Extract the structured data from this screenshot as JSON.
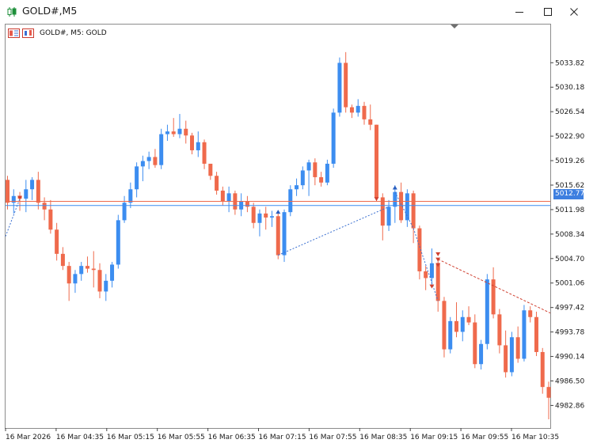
{
  "window": {
    "title": "GOLD#,M5",
    "minimize_icon": "minimize-icon",
    "maximize_icon": "maximize-icon",
    "close_icon": "close-icon"
  },
  "chart_header": {
    "label": "GOLD#, M5:  GOLD",
    "icons": [
      "trade-panel-icon",
      "chart-icon"
    ]
  },
  "colors": {
    "bull": "#3c8df0",
    "bear": "#ef6a4c",
    "bid_line": "#ef6a4c",
    "ask_line": "#3c8df0",
    "price_tag": "#3e7fe0"
  },
  "current_price_label": "5012.77",
  "chart_data": {
    "type": "candlestick",
    "title": "GOLD#, M5:  GOLD",
    "symbol": "GOLD#",
    "timeframe": "M5",
    "ylim": [
      4979.5,
      5039.5
    ],
    "y_ticks": [
      "5033.82",
      "5030.18",
      "5026.54",
      "5022.90",
      "5019.26",
      "5015.62",
      "5011.98",
      "5008.34",
      "5004.70",
      "5001.06",
      "4997.42",
      "4993.78",
      "4990.14",
      "4986.50",
      "4982.86"
    ],
    "x_ticks": [
      "16 Mar 2026",
      "16 Mar 04:35",
      "16 Mar 05:15",
      "16 Mar 05:55",
      "16 Mar 06:35",
      "16 Mar 07:15",
      "16 Mar 07:55",
      "16 Mar 08:35",
      "16 Mar 09:15",
      "16 Mar 09:55",
      "16 Mar 10:35"
    ],
    "bid": 5012.77,
    "ask": 5013.2,
    "candles": [
      [
        5016.4,
        5017.0,
        5012.0,
        5013.0
      ],
      [
        5013.0,
        5015.0,
        5011.4,
        5014.0
      ],
      [
        5014.0,
        5014.6,
        5011.8,
        5013.6
      ],
      [
        5013.6,
        5016.4,
        5011.6,
        5015.0
      ],
      [
        5015.0,
        5016.8,
        5013.4,
        5016.4
      ],
      [
        5016.4,
        5017.6,
        5012.0,
        5013.0
      ],
      [
        5013.0,
        5013.8,
        5010.4,
        5012.0
      ],
      [
        5012.0,
        5013.4,
        5008.4,
        5009.0
      ],
      [
        5009.0,
        5010.0,
        5004.4,
        5005.4
      ],
      [
        5005.4,
        5006.4,
        5003.0,
        5003.6
      ],
      [
        5003.6,
        5004.2,
        4998.4,
        5001.0
      ],
      [
        5001.0,
        5003.0,
        4999.6,
        5002.4
      ],
      [
        5002.4,
        5004.2,
        5001.4,
        5003.6
      ],
      [
        5003.6,
        5005.0,
        5002.6,
        5003.2
      ],
      [
        5003.2,
        5005.8,
        5000.4,
        5003.0
      ],
      [
        5003.0,
        5004.0,
        4998.8,
        4999.8
      ],
      [
        4999.8,
        5002.4,
        4998.4,
        5001.4
      ],
      [
        5001.4,
        5004.2,
        5000.4,
        5003.8
      ],
      [
        5003.8,
        5011.2,
        5003.2,
        5010.4
      ],
      [
        5010.4,
        5014.0,
        5010.0,
        5013.0
      ],
      [
        5013.0,
        5016.0,
        5012.2,
        5015.0
      ],
      [
        5015.0,
        5019.0,
        5013.8,
        5018.4
      ],
      [
        5018.4,
        5020.0,
        5016.2,
        5019.2
      ],
      [
        5019.2,
        5020.6,
        5018.0,
        5019.8
      ],
      [
        5019.8,
        5021.0,
        5018.2,
        5018.6
      ],
      [
        5018.6,
        5024.0,
        5018.0,
        5023.2
      ],
      [
        5023.2,
        5024.6,
        5022.2,
        5023.6
      ],
      [
        5023.6,
        5025.6,
        5022.8,
        5023.2
      ],
      [
        5023.2,
        5026.2,
        5022.6,
        5024.0
      ],
      [
        5024.0,
        5025.2,
        5021.8,
        5023.0
      ],
      [
        5023.0,
        5023.4,
        5020.2,
        5020.8
      ],
      [
        5020.8,
        5023.6,
        5019.8,
        5022.0
      ],
      [
        5022.0,
        5022.4,
        5018.0,
        5018.8
      ],
      [
        5018.8,
        5018.6,
        5016.4,
        5017.0
      ],
      [
        5017.0,
        5017.6,
        5014.2,
        5014.8
      ],
      [
        5014.8,
        5015.4,
        5012.6,
        5013.2
      ],
      [
        5013.2,
        5015.4,
        5011.6,
        5014.4
      ],
      [
        5014.4,
        5014.8,
        5011.2,
        5012.0
      ],
      [
        5012.0,
        5014.4,
        5011.0,
        5013.2
      ],
      [
        5013.2,
        5014.0,
        5011.6,
        5012.4
      ],
      [
        5012.4,
        5013.0,
        5009.2,
        5010.0
      ],
      [
        5010.0,
        5012.0,
        5008.0,
        5011.4
      ],
      [
        5011.4,
        5012.4,
        5009.0,
        5010.8
      ],
      [
        5010.8,
        5011.8,
        5009.4,
        5011.0
      ],
      [
        5011.0,
        5011.6,
        5004.6,
        5005.2
      ],
      [
        5005.2,
        5012.0,
        5004.2,
        5011.6
      ],
      [
        5011.6,
        5015.6,
        5011.0,
        5015.0
      ],
      [
        5015.0,
        5016.6,
        5014.0,
        5015.6
      ],
      [
        5015.6,
        5018.4,
        5015.0,
        5017.8
      ],
      [
        5017.8,
        5019.4,
        5014.0,
        5019.0
      ],
      [
        5019.0,
        5019.6,
        5015.6,
        5016.8
      ],
      [
        5016.8,
        5017.6,
        5015.4,
        5016.0
      ],
      [
        5016.0,
        5019.4,
        5015.6,
        5018.8
      ],
      [
        5018.8,
        5027.0,
        5018.2,
        5026.4
      ],
      [
        5026.4,
        5034.6,
        5025.8,
        5033.8
      ],
      [
        5033.8,
        5035.4,
        5026.4,
        5027.2
      ],
      [
        5027.2,
        5027.6,
        5025.6,
        5026.4
      ],
      [
        5026.4,
        5028.4,
        5025.8,
        5027.4
      ],
      [
        5027.4,
        5028.0,
        5024.6,
        5025.4
      ],
      [
        5025.4,
        5027.6,
        5023.8,
        5024.6
      ],
      [
        5024.6,
        5024.6,
        5013.2,
        5013.8
      ],
      [
        5013.8,
        5014.4,
        5007.4,
        5009.6
      ],
      [
        5009.6,
        5013.4,
        5008.8,
        5012.4
      ],
      [
        5012.4,
        5015.6,
        5010.0,
        5014.6
      ],
      [
        5014.6,
        5016.0,
        5010.0,
        5010.4
      ],
      [
        5010.4,
        5015.0,
        5009.4,
        5014.4
      ],
      [
        5014.4,
        5014.8,
        5007.0,
        5009.2
      ],
      [
        5009.2,
        5009.6,
        5001.6,
        5002.8
      ],
      [
        5002.8,
        5003.6,
        5000.0,
        5001.8
      ],
      [
        5001.8,
        5006.2,
        5000.8,
        5004.0
      ],
      [
        5004.0,
        5004.6,
        4996.8,
        4998.4
      ],
      [
        4998.4,
        4999.0,
        4990.0,
        4991.2
      ],
      [
        4991.2,
        4996.0,
        4990.6,
        4995.4
      ],
      [
        4995.4,
        4998.2,
        4993.0,
        4993.8
      ],
      [
        4993.8,
        4997.0,
        4992.4,
        4996.0
      ],
      [
        4996.0,
        4997.6,
        4994.8,
        4995.2
      ],
      [
        4995.2,
        4996.4,
        4988.4,
        4989.0
      ],
      [
        4989.0,
        4992.6,
        4988.2,
        4992.0
      ],
      [
        4992.0,
        5002.4,
        4991.2,
        5001.6
      ],
      [
        5001.6,
        5003.4,
        4995.8,
        4996.4
      ],
      [
        4996.4,
        4997.2,
        4990.6,
        4991.8
      ],
      [
        4991.8,
        4994.0,
        4987.0,
        4987.8
      ],
      [
        4987.8,
        4993.8,
        4987.2,
        4993.0
      ],
      [
        4993.0,
        4994.6,
        4989.2,
        4989.8
      ],
      [
        4989.8,
        4997.8,
        4989.4,
        4997.0
      ],
      [
        4997.0,
        4997.6,
        4995.2,
        4996.0
      ],
      [
        4996.0,
        4996.8,
        4990.2,
        4990.8
      ],
      [
        4990.8,
        4991.4,
        4984.6,
        4985.6
      ],
      [
        4985.6,
        4986.4,
        4980.8,
        4984.0
      ]
    ]
  }
}
